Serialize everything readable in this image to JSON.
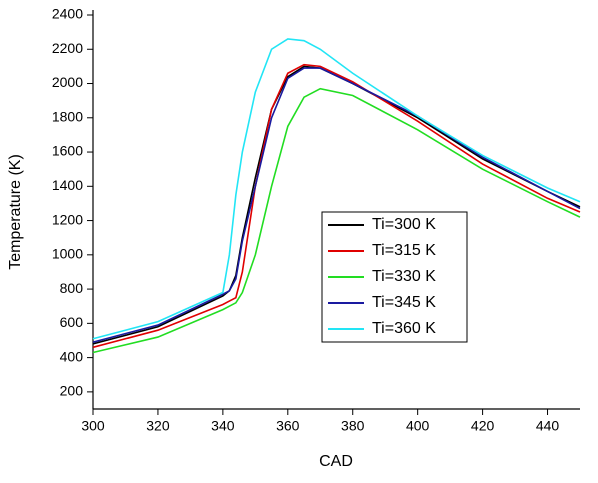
{
  "chart_data": {
    "type": "line",
    "x_label": "CAD",
    "y_label": "Temperature (K)",
    "x": [
      300,
      320,
      340,
      342,
      344,
      346,
      350,
      355,
      360,
      365,
      370,
      380,
      400,
      420,
      440,
      450
    ],
    "series": [
      {
        "name": "Ti=300 K",
        "color": "#000000",
        "values": [
          480,
          580,
          760,
          790,
          880,
          1100,
          1450,
          1850,
          2040,
          2100,
          2090,
          2000,
          1800,
          1560,
          1370,
          1280
        ]
      },
      {
        "name": "Ti=315 K",
        "color": "#e00000",
        "values": [
          460,
          560,
          710,
          730,
          750,
          900,
          1400,
          1850,
          2060,
          2110,
          2100,
          2010,
          1780,
          1530,
          1330,
          1250
        ]
      },
      {
        "name": "Ti=330 K",
        "color": "#22dd22",
        "values": [
          430,
          520,
          680,
          700,
          720,
          780,
          1000,
          1400,
          1750,
          1920,
          1970,
          1930,
          1730,
          1500,
          1310,
          1220
        ]
      },
      {
        "name": "Ti=345 K",
        "color": "#1a1aa0",
        "values": [
          490,
          590,
          770,
          790,
          860,
          1080,
          1400,
          1800,
          2030,
          2090,
          2090,
          2000,
          1810,
          1570,
          1370,
          1270
        ]
      },
      {
        "name": "Ti=360 K",
        "color": "#22e5f5",
        "values": [
          510,
          610,
          780,
          1000,
          1350,
          1600,
          1950,
          2200,
          2260,
          2250,
          2200,
          2060,
          1810,
          1580,
          1390,
          1310
        ]
      }
    ],
    "xlim": [
      300,
      450
    ],
    "xticks": [
      300,
      320,
      340,
      360,
      380,
      400,
      420,
      440
    ],
    "ylim": [
      100,
      2400
    ],
    "yticks": [
      200,
      400,
      600,
      800,
      1000,
      1200,
      1400,
      1600,
      1800,
      2000,
      2200,
      2400
    ]
  }
}
